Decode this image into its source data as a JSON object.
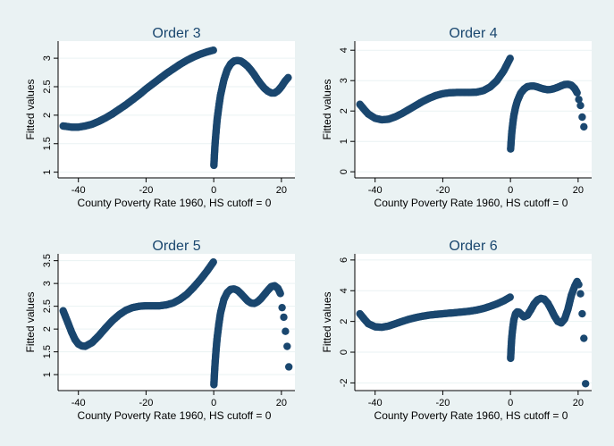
{
  "chart_data": [
    {
      "type": "scatter",
      "title": "Order 3",
      "xlabel": "County Poverty Rate 1960, HS cutoff = 0",
      "ylabel": "Fitted values",
      "xlim": [
        -46,
        24
      ],
      "ylim": [
        0.9,
        3.3
      ],
      "xticks": [
        -40,
        -20,
        0,
        20
      ],
      "xtick_labels": [
        "-40",
        "-20",
        "0",
        "20"
      ],
      "yticks": [
        1,
        1.5,
        2,
        2.5,
        3
      ],
      "ytick_labels": [
        "1",
        "1.5",
        "2",
        "2.5",
        "3"
      ],
      "grid": true,
      "series": [
        {
          "x": [
            -44.5,
            -42,
            -40,
            -38,
            -36,
            -34,
            -32,
            -30,
            -28,
            -26,
            -24,
            -22,
            -20,
            -18,
            -16,
            -14,
            -12,
            -10,
            -8,
            -6,
            -4,
            -2,
            -0.1
          ],
          "y": [
            1.81,
            1.79,
            1.79,
            1.81,
            1.84,
            1.89,
            1.95,
            2.02,
            2.1,
            2.18,
            2.27,
            2.36,
            2.46,
            2.55,
            2.64,
            2.73,
            2.81,
            2.89,
            2.96,
            3.02,
            3.07,
            3.11,
            3.14
          ]
        },
        {
          "x": [
            0.05,
            0.2,
            0.4,
            0.7,
            1,
            1.5,
            2,
            3,
            4,
            5,
            6,
            7,
            8,
            9,
            10,
            11,
            12,
            13,
            14,
            15,
            16,
            17,
            18,
            19,
            20,
            21,
            22
          ],
          "y": [
            1.12,
            1.3,
            1.5,
            1.72,
            1.92,
            2.15,
            2.35,
            2.62,
            2.8,
            2.9,
            2.95,
            2.96,
            2.95,
            2.91,
            2.86,
            2.79,
            2.71,
            2.62,
            2.54,
            2.47,
            2.42,
            2.39,
            2.39,
            2.43,
            2.5,
            2.59,
            2.66
          ]
        }
      ]
    },
    {
      "type": "scatter",
      "title": "Order 4",
      "xlabel": "County Poverty Rate 1960, HS cutoff = 0",
      "ylabel": "Fitted values",
      "xlim": [
        -46,
        24
      ],
      "ylim": [
        -0.2,
        4.3
      ],
      "xticks": [
        -40,
        -20,
        0,
        20
      ],
      "xtick_labels": [
        "-40",
        "-20",
        "0",
        "20"
      ],
      "yticks": [
        0,
        1,
        2,
        3,
        4
      ],
      "ytick_labels": [
        "0",
        "1",
        "2",
        "3",
        "4"
      ],
      "grid": true,
      "series": [
        {
          "x": [
            -44.5,
            -43,
            -42,
            -40,
            -38,
            -36,
            -34,
            -32,
            -30,
            -28,
            -26,
            -24,
            -22,
            -20,
            -18,
            -16,
            -14,
            -12,
            -10,
            -8,
            -6,
            -4,
            -2,
            -0.1
          ],
          "y": [
            2.22,
            2.02,
            1.9,
            1.76,
            1.71,
            1.73,
            1.81,
            1.92,
            2.05,
            2.18,
            2.31,
            2.42,
            2.51,
            2.57,
            2.6,
            2.61,
            2.61,
            2.61,
            2.62,
            2.67,
            2.79,
            3.0,
            3.32,
            3.73
          ]
        },
        {
          "x": [
            0.05,
            0.2,
            0.4,
            0.7,
            1,
            1.5,
            2,
            3,
            4,
            5,
            6,
            7,
            8,
            9,
            10,
            11,
            12,
            13,
            14,
            15,
            16,
            17,
            18,
            19,
            19.7
          ],
          "y": [
            0.75,
            1.0,
            1.3,
            1.6,
            1.85,
            2.12,
            2.32,
            2.58,
            2.72,
            2.8,
            2.82,
            2.82,
            2.79,
            2.75,
            2.72,
            2.7,
            2.71,
            2.74,
            2.78,
            2.83,
            2.87,
            2.88,
            2.85,
            2.74,
            2.6
          ]
        },
        {
          "x": [
            20.2,
            20.7,
            21.2,
            21.7
          ],
          "y": [
            2.38,
            2.18,
            1.8,
            1.48
          ]
        }
      ]
    },
    {
      "type": "scatter",
      "title": "Order 5",
      "xlabel": "County Poverty Rate 1960, HS cutoff = 0",
      "ylabel": "Fitted values",
      "xlim": [
        -46,
        24
      ],
      "ylim": [
        0.65,
        3.65
      ],
      "xticks": [
        -40,
        -20,
        0,
        20
      ],
      "xtick_labels": [
        "-40",
        "-20",
        "0",
        "20"
      ],
      "yticks": [
        1,
        1.5,
        2,
        2.5,
        3,
        3.5
      ],
      "ytick_labels": [
        "1",
        "1.5",
        "2",
        "2.5",
        "3",
        "3.5"
      ],
      "grid": true,
      "series": [
        {
          "x": [
            -44.5,
            -43,
            -42,
            -41,
            -40,
            -39,
            -38,
            -36,
            -34,
            -32,
            -30,
            -28,
            -26,
            -24,
            -22,
            -20,
            -18,
            -16,
            -14,
            -12,
            -10,
            -8,
            -6,
            -4,
            -2,
            -0.1
          ],
          "y": [
            2.4,
            2.12,
            1.93,
            1.77,
            1.67,
            1.63,
            1.62,
            1.7,
            1.85,
            2.02,
            2.18,
            2.31,
            2.41,
            2.47,
            2.5,
            2.51,
            2.51,
            2.51,
            2.53,
            2.57,
            2.65,
            2.76,
            2.91,
            3.08,
            3.27,
            3.47
          ]
        },
        {
          "x": [
            0.05,
            0.2,
            0.4,
            0.7,
            1,
            1.5,
            2,
            3,
            4,
            5,
            6,
            7,
            8,
            9,
            10,
            11,
            12,
            13,
            14,
            15,
            16,
            17,
            18,
            19,
            19.7
          ],
          "y": [
            0.78,
            1.0,
            1.25,
            1.55,
            1.8,
            2.1,
            2.35,
            2.65,
            2.8,
            2.87,
            2.88,
            2.85,
            2.78,
            2.7,
            2.62,
            2.57,
            2.56,
            2.6,
            2.67,
            2.76,
            2.85,
            2.93,
            2.95,
            2.89,
            2.78
          ]
        },
        {
          "x": [
            20.2,
            20.7,
            21.2,
            21.7,
            22.2
          ],
          "y": [
            2.47,
            2.26,
            1.95,
            1.62,
            1.17
          ]
        }
      ]
    },
    {
      "type": "scatter",
      "title": "Order 6",
      "xlabel": "County Poverty Rate 1960, HS cutoff = 0",
      "ylabel": "Fitted values",
      "xlim": [
        -46,
        24
      ],
      "ylim": [
        -2.5,
        6.4
      ],
      "xticks": [
        -40,
        -20,
        0,
        20
      ],
      "xtick_labels": [
        "-40",
        "-20",
        "0",
        "20"
      ],
      "yticks": [
        -2,
        0,
        2,
        4,
        6
      ],
      "ytick_labels": [
        "-2",
        "0",
        "2",
        "4",
        "6"
      ],
      "grid": true,
      "series": [
        {
          "x": [
            -44.5,
            -43,
            -42,
            -40,
            -38,
            -36,
            -34,
            -32,
            -30,
            -28,
            -26,
            -24,
            -22,
            -20,
            -18,
            -16,
            -14,
            -12,
            -10,
            -8,
            -6,
            -4,
            -2,
            -0.1
          ],
          "y": [
            2.5,
            2.1,
            1.85,
            1.65,
            1.62,
            1.7,
            1.85,
            2.0,
            2.14,
            2.25,
            2.34,
            2.41,
            2.46,
            2.5,
            2.54,
            2.58,
            2.62,
            2.67,
            2.74,
            2.84,
            2.98,
            3.14,
            3.34,
            3.58
          ]
        },
        {
          "x": [
            0.05,
            0.2,
            0.4,
            0.7,
            1,
            1.5,
            2,
            2.5,
            3,
            4,
            5,
            6,
            7,
            8,
            9,
            10,
            11,
            12,
            13,
            14,
            15,
            16,
            17,
            18,
            19,
            19.7
          ],
          "y": [
            -0.4,
            0.3,
            1.0,
            1.6,
            2.1,
            2.5,
            2.62,
            2.6,
            2.5,
            2.3,
            2.4,
            2.75,
            3.15,
            3.4,
            3.5,
            3.45,
            3.2,
            2.8,
            2.35,
            2.0,
            1.9,
            2.15,
            2.8,
            3.7,
            4.3,
            4.6
          ]
        },
        {
          "x": [
            20.2,
            20.7,
            21.2,
            21.7,
            22.2
          ],
          "y": [
            4.4,
            3.8,
            2.5,
            0.9,
            -2.05
          ]
        }
      ]
    }
  ]
}
